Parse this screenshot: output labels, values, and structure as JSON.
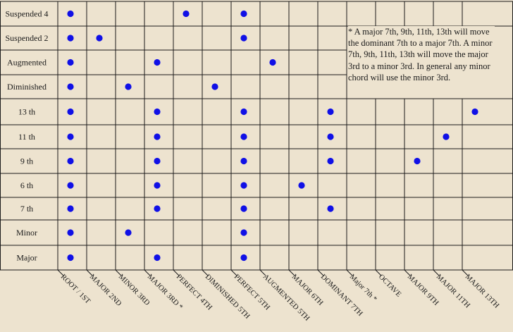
{
  "chart_data": {
    "type": "table",
    "rows": [
      "Suspended 4",
      "Suspended 2",
      "Augmented",
      "Diminished",
      "13 th",
      "11 th",
      "9 th",
      "6 th",
      "7 th",
      "Minor",
      "Major"
    ],
    "columns": [
      "ROOT / 1ST",
      "MAJOR 2ND",
      "MINOR 3RD",
      "MAJOR 3RD *",
      "PERFECT 4TH",
      "DIMINISHED 5TH",
      "PERFECT 5TH",
      "AUGMENTED 5TH",
      "MAJOR 6TH",
      "DOMINANT 7TH",
      "Major 7th *",
      "OCTAVE",
      "MAJOR 9TH",
      "MAJOR 11TH",
      "MAJOR 13TH"
    ],
    "dots": [
      [
        "Suspended 4",
        "ROOT / 1ST"
      ],
      [
        "Suspended 4",
        "PERFECT 4TH"
      ],
      [
        "Suspended 4",
        "PERFECT 5TH"
      ],
      [
        "Suspended 2",
        "ROOT / 1ST"
      ],
      [
        "Suspended 2",
        "MAJOR 2ND"
      ],
      [
        "Suspended 2",
        "PERFECT 5TH"
      ],
      [
        "Augmented",
        "ROOT / 1ST"
      ],
      [
        "Augmented",
        "MAJOR 3RD *"
      ],
      [
        "Augmented",
        "AUGMENTED 5TH"
      ],
      [
        "Diminished",
        "ROOT / 1ST"
      ],
      [
        "Diminished",
        "MINOR 3RD"
      ],
      [
        "Diminished",
        "DIMINISHED 5TH"
      ],
      [
        "13 th",
        "ROOT / 1ST"
      ],
      [
        "13 th",
        "MAJOR 3RD *"
      ],
      [
        "13 th",
        "PERFECT 5TH"
      ],
      [
        "13 th",
        "DOMINANT 7TH"
      ],
      [
        "13 th",
        "MAJOR 13TH"
      ],
      [
        "11 th",
        "ROOT / 1ST"
      ],
      [
        "11 th",
        "MAJOR 3RD *"
      ],
      [
        "11 th",
        "PERFECT 5TH"
      ],
      [
        "11 th",
        "DOMINANT 7TH"
      ],
      [
        "11 th",
        "MAJOR 11TH"
      ],
      [
        "9 th",
        "ROOT / 1ST"
      ],
      [
        "9 th",
        "MAJOR 3RD *"
      ],
      [
        "9 th",
        "PERFECT 5TH"
      ],
      [
        "9 th",
        "DOMINANT 7TH"
      ],
      [
        "9 th",
        "MAJOR 9TH"
      ],
      [
        "6 th",
        "ROOT / 1ST"
      ],
      [
        "6 th",
        "MAJOR 3RD *"
      ],
      [
        "6 th",
        "PERFECT 5TH"
      ],
      [
        "6 th",
        "MAJOR 6TH"
      ],
      [
        "7 th",
        "ROOT / 1ST"
      ],
      [
        "7 th",
        "MAJOR 3RD *"
      ],
      [
        "7 th",
        "PERFECT 5TH"
      ],
      [
        "7 th",
        "DOMINANT 7TH"
      ],
      [
        "Minor",
        "ROOT / 1ST"
      ],
      [
        "Minor",
        "MINOR 3RD"
      ],
      [
        "Minor",
        "PERFECT 5TH"
      ],
      [
        "Major",
        "ROOT / 1ST"
      ],
      [
        "Major",
        "MAJOR 3RD *"
      ],
      [
        "Major",
        "PERFECT 5TH"
      ]
    ],
    "note": "* A major 7th, 9th, 11th, 13th will move the dominant 7th to a major 7th. A minor 7th, 9th, 11th, 13th will move the major 3rd to a minor 3rd. In general any minor chord will use the minor 3rd.",
    "colors": {
      "background": "#ede3cf",
      "dot": "#1010e6",
      "grid": "#1a1a1a"
    }
  }
}
